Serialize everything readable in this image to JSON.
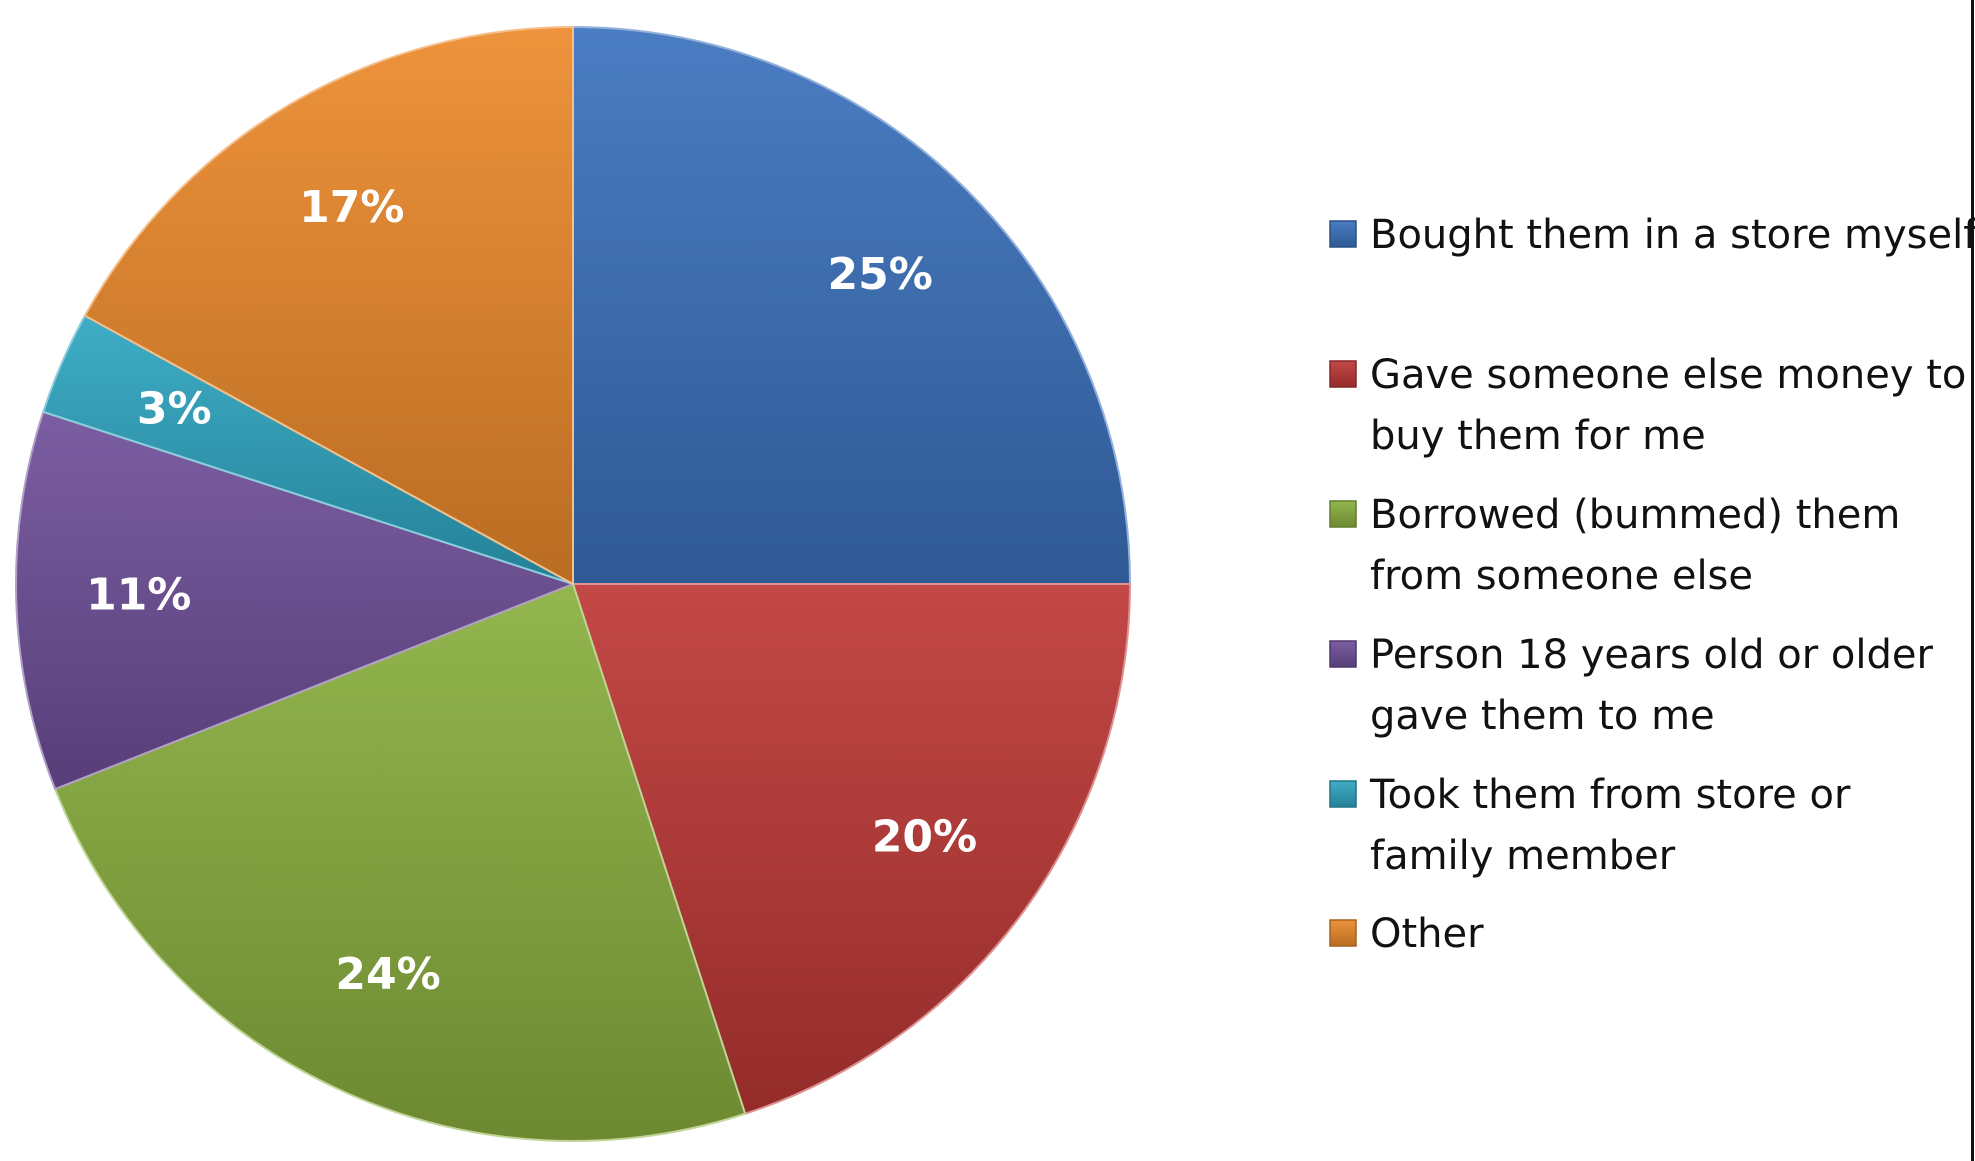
{
  "chart_data": {
    "type": "pie",
    "title": "",
    "slices": [
      {
        "label": "Bought them in a store myself",
        "label_lines": [
          "Bought them in a store myself"
        ],
        "value": 25,
        "value_label": "25%",
        "color": "#3B72BE"
      },
      {
        "label": "Gave someone else money to buy them for me",
        "label_lines": [
          "Gave someone else money to",
          "buy them for me"
        ],
        "value": 20,
        "value_label": "20%",
        "color": "#BE3836"
      },
      {
        "label": "Borrowed (bummed) them from someone else",
        "label_lines": [
          "Borrowed (bummed) them",
          "from someone else"
        ],
        "value": 24,
        "value_label": "24%",
        "color": "#8AB03F"
      },
      {
        "label": "Person 18 years old or older gave them to me",
        "label_lines": [
          "Person 18 years old or older",
          "gave them to me"
        ],
        "value": 11,
        "value_label": "11%",
        "color": "#70509A"
      },
      {
        "label": "Took them from store or family member",
        "label_lines": [
          "Took them from store or",
          "family member"
        ],
        "value": 3,
        "value_label": "3%",
        "color": "#2EA6C1"
      },
      {
        "label": "Other",
        "label_lines": [
          "Other"
        ],
        "value": 17,
        "value_label": "17%",
        "color": "#ED8A2B"
      }
    ],
    "legend_position": "right",
    "start_angle": "12 o'clock",
    "direction": "clockwise"
  }
}
